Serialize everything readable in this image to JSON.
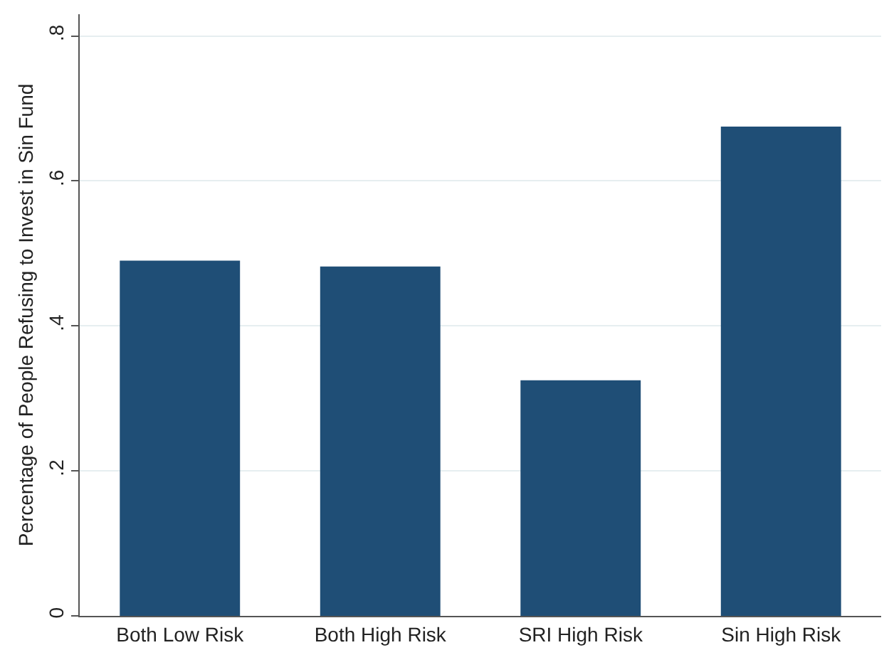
{
  "chart_data": {
    "type": "bar",
    "ylabel": "Percentage of People Refusing to Invest in Sin Fund",
    "categories": [
      "Both Low Risk",
      "Both High Risk",
      "SRI High Risk",
      "Sin High Risk"
    ],
    "values": [
      0.49,
      0.482,
      0.325,
      0.675
    ],
    "color": "#1f4e76",
    "ylim": [
      0,
      0.83
    ],
    "yticks": [
      0,
      {
        "value": 0.2,
        "label": ".2"
      },
      {
        "value": 0.4,
        "label": ".4"
      },
      {
        "value": 0.6,
        "label": ".6"
      },
      {
        "value": 0.8,
        "label": ".8"
      }
    ],
    "grid": "y"
  }
}
